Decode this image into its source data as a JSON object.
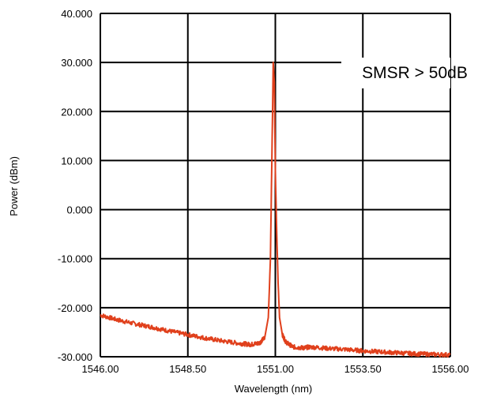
{
  "chart_data": {
    "type": "line",
    "xlabel": "Wavelength (nm)",
    "ylabel": "Power (dBm)",
    "xlim": [
      1546.0,
      1556.0
    ],
    "ylim": [
      -30.0,
      40.0
    ],
    "x_ticks": [
      "1546.00",
      "1548.50",
      "1551.00",
      "1553.50",
      "1556.00"
    ],
    "y_ticks": [
      "40.000",
      "30.000",
      "20.000",
      "10.000",
      "0.000",
      "-10.000",
      "-20.000",
      "-30.000"
    ],
    "grid": true,
    "annotation": "SMSR > 50dB",
    "series": [
      {
        "color": "#e0401c",
        "x": [
          1546.0,
          1546.5,
          1547.0,
          1547.5,
          1548.0,
          1548.5,
          1549.0,
          1549.5,
          1550.0,
          1550.3,
          1550.55,
          1550.7,
          1550.8,
          1550.86,
          1550.9,
          1550.94,
          1550.97,
          1551.0,
          1551.04,
          1551.08,
          1551.12,
          1551.2,
          1551.3,
          1551.5,
          1551.8,
          1552.0,
          1552.5,
          1553.0,
          1553.5,
          1554.0,
          1554.5,
          1555.0,
          1555.5,
          1556.0
        ],
        "y": [
          -21.5,
          -22.5,
          -23.3,
          -24.0,
          -24.8,
          -25.5,
          -26.2,
          -26.8,
          -27.3,
          -27.5,
          -27.2,
          -26.0,
          -22.0,
          -10.0,
          10.0,
          30.0,
          26.0,
          8.0,
          -5.0,
          -15.0,
          -22.0,
          -25.5,
          -27.0,
          -28.0,
          -28.2,
          -28.0,
          -28.3,
          -28.5,
          -28.8,
          -29.0,
          -29.2,
          -29.4,
          -29.5,
          -29.6
        ]
      }
    ]
  }
}
